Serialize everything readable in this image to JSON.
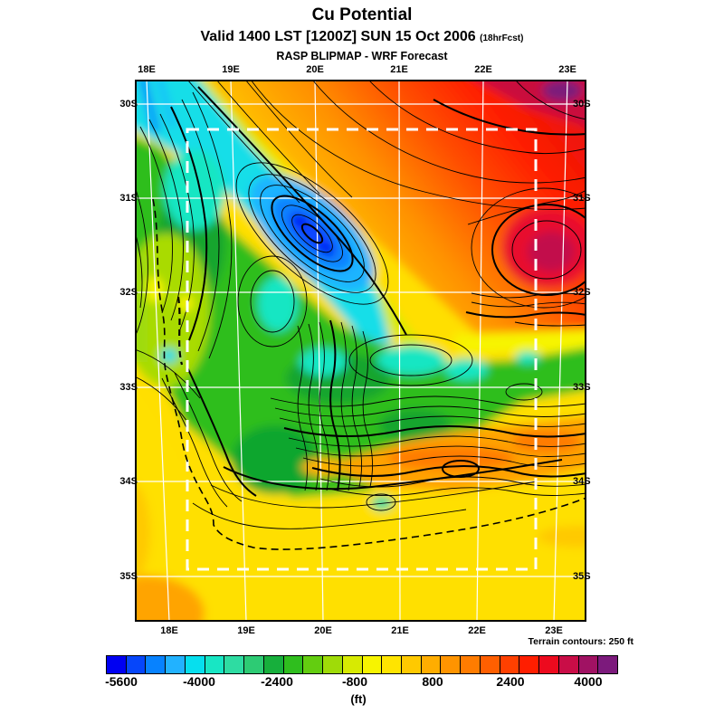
{
  "header": {
    "title": "Cu Potential",
    "valid_line": {
      "main": "Valid 1400 LST [1200Z] SUN 15 Oct 2006",
      "fcst": "(18hrFcst)"
    },
    "model_line": "RASP BLIPMAP - WRF Forecast"
  },
  "map": {
    "lon_labels_top": [
      "18E",
      "19E",
      "20E",
      "21E",
      "22E",
      "23E"
    ],
    "lon_labels_bottom": [
      "18E",
      "19E",
      "20E",
      "21E",
      "22E",
      "23E"
    ],
    "lat_labels_left": [
      "30S",
      "31S",
      "32S",
      "33S",
      "34S",
      "35S"
    ],
    "lat_labels_right": [
      "30S",
      "31S",
      "32S",
      "33S",
      "34S",
      "35S"
    ],
    "footnote": "Terrain contours: 250 ft"
  },
  "colorbar": {
    "unit": "(ft)",
    "ticks": [
      "-5600",
      "-4000",
      "-2400",
      "-800",
      "800",
      "2400",
      "4000"
    ],
    "cell_colors": [
      "#0000F2",
      "#0646FA",
      "#0782FF",
      "#22B2FF",
      "#06DFEE",
      "#18E6C4",
      "#2EDCA2",
      "#2DCB74",
      "#17AF3C",
      "#2FBE1E",
      "#63CD10",
      "#9FDB08",
      "#D7EA02",
      "#F7F400",
      "#FFE400",
      "#FFC900",
      "#FFAD00",
      "#FF9400",
      "#FF7C00",
      "#FF5F00",
      "#FF4000",
      "#FF1E00",
      "#ED0A1E",
      "#C90D47",
      "#A01263",
      "#7C1A7C"
    ]
  },
  "chart_data": {
    "type": "heatmap",
    "title": "Cu Potential",
    "units": "ft",
    "colorbar_tick_values": [
      -5600,
      -4000,
      -2400,
      -800,
      800,
      2400,
      4000
    ],
    "x_ticks": [
      "18E",
      "19E",
      "20E",
      "21E",
      "22E",
      "23E"
    ],
    "y_ticks": [
      "30S",
      "31S",
      "32S",
      "33S",
      "34S",
      "35S"
    ],
    "annotation": "Terrain contours: 250 ft"
  }
}
